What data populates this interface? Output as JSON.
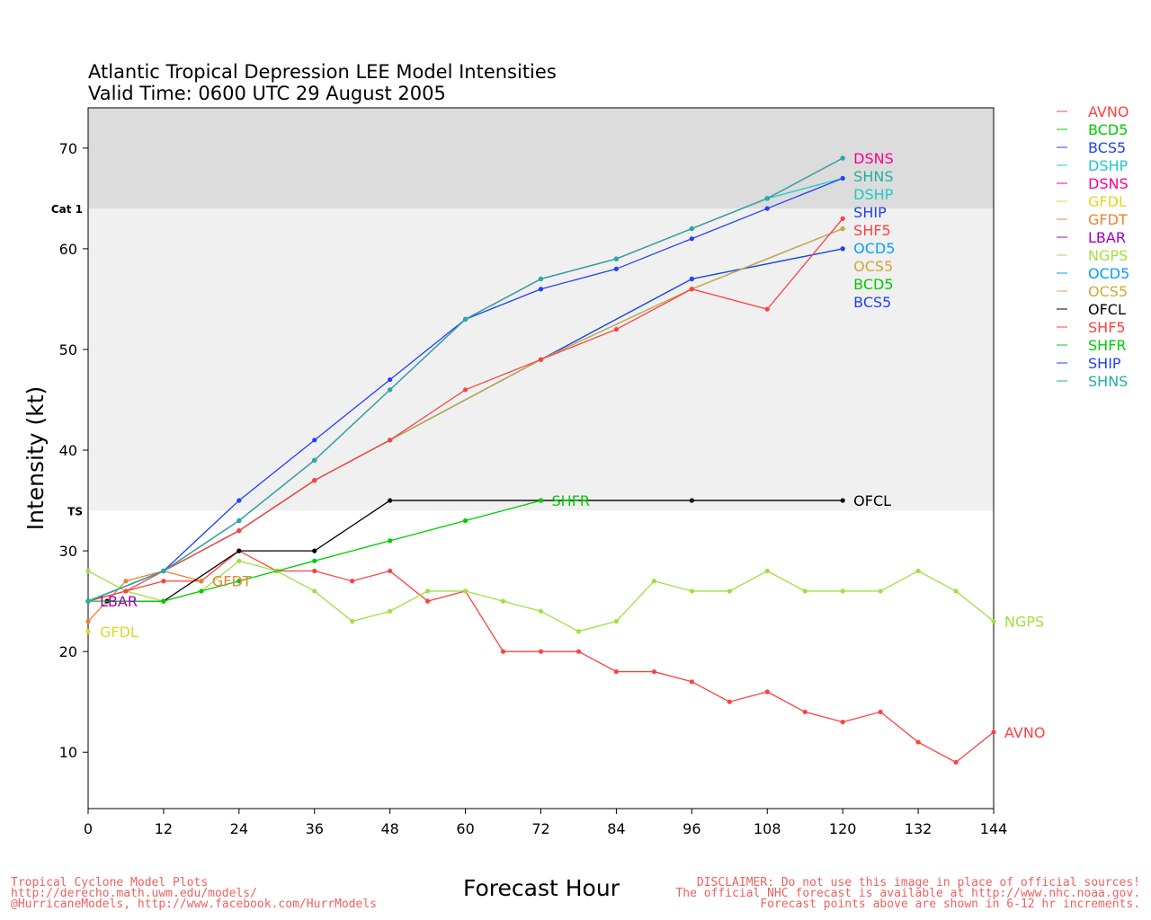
{
  "chart_data": {
    "type": "line",
    "title": "Atlantic Tropical Depression LEE Model Intensities",
    "subtitle": "Valid Time: 0600 UTC 29 August 2005",
    "xlabel": "Forecast Hour",
    "ylabel": "Intensity (kt)",
    "xlim": [
      0,
      144
    ],
    "ylim": [
      4.4,
      74
    ],
    "xticks": [
      0,
      12,
      24,
      36,
      48,
      60,
      72,
      84,
      96,
      108,
      120,
      132,
      144
    ],
    "yticks": [
      10,
      20,
      30,
      40,
      50,
      60,
      70
    ],
    "bands": [
      {
        "label": "TS",
        "from": 34,
        "to": 64,
        "color": "#f0f0f0"
      },
      {
        "label": "Cat 1",
        "from": 64,
        "to": 74,
        "color": "#dcdcdc"
      }
    ],
    "legend_position": "right",
    "series": [
      {
        "name": "AVNO",
        "color": "#ff4040",
        "points": [
          [
            0,
            25
          ],
          [
            6,
            26
          ],
          [
            12,
            27
          ],
          [
            18,
            27
          ],
          [
            24,
            30
          ],
          [
            30,
            28
          ],
          [
            36,
            28
          ],
          [
            42,
            27
          ],
          [
            48,
            28
          ],
          [
            54,
            25
          ],
          [
            60,
            26
          ],
          [
            66,
            20
          ],
          [
            72,
            20
          ],
          [
            78,
            20
          ],
          [
            84,
            18
          ],
          [
            90,
            18
          ],
          [
            96,
            17
          ],
          [
            102,
            15
          ],
          [
            108,
            16
          ],
          [
            114,
            14
          ],
          [
            120,
            13
          ],
          [
            126,
            14
          ],
          [
            132,
            11
          ],
          [
            138,
            9
          ],
          [
            144,
            12
          ]
        ]
      },
      {
        "name": "BCD5",
        "color": "#00cc00",
        "points": [
          [
            0,
            25
          ],
          [
            12,
            28
          ],
          [
            24,
            32
          ],
          [
            36,
            37
          ],
          [
            48,
            41
          ],
          [
            72,
            49
          ],
          [
            96,
            57
          ],
          [
            120,
            60
          ]
        ]
      },
      {
        "name": "BCS5",
        "color": "#2040ff",
        "points": [
          [
            0,
            25
          ],
          [
            12,
            28
          ],
          [
            24,
            32
          ],
          [
            36,
            37
          ],
          [
            48,
            41
          ],
          [
            72,
            49
          ],
          [
            96,
            57
          ],
          [
            120,
            60
          ]
        ]
      },
      {
        "name": "DSHP",
        "color": "#20c8c8",
        "points": [
          [
            0,
            25
          ],
          [
            12,
            28
          ],
          [
            24,
            33
          ],
          [
            36,
            39
          ],
          [
            48,
            46
          ],
          [
            60,
            53
          ],
          [
            72,
            57
          ],
          [
            84,
            59
          ],
          [
            96,
            62
          ],
          [
            108,
            65
          ],
          [
            120,
            67
          ]
        ]
      },
      {
        "name": "DSNS",
        "color": "#ff0090",
        "points": [
          [
            0,
            25
          ],
          [
            12,
            28
          ],
          [
            24,
            33
          ],
          [
            36,
            39
          ],
          [
            48,
            46
          ],
          [
            60,
            53
          ],
          [
            72,
            57
          ],
          [
            84,
            59
          ],
          [
            96,
            62
          ],
          [
            108,
            65
          ],
          [
            120,
            69
          ]
        ]
      },
      {
        "name": "GFDL",
        "color": "#e0d820",
        "points": [
          [
            0,
            22
          ]
        ]
      },
      {
        "name": "GFDT",
        "color": "#f08030",
        "points": [
          [
            0,
            23
          ],
          [
            6,
            27
          ],
          [
            12,
            28
          ],
          [
            18,
            27
          ]
        ]
      },
      {
        "name": "LBAR",
        "color": "#a000c0",
        "points": [
          [
            0,
            25
          ]
        ]
      },
      {
        "name": "NGPS",
        "color": "#a0e040",
        "points": [
          [
            0,
            28
          ],
          [
            6,
            26
          ],
          [
            12,
            25
          ],
          [
            18,
            26
          ],
          [
            24,
            29
          ],
          [
            30,
            28
          ],
          [
            36,
            26
          ],
          [
            42,
            23
          ],
          [
            48,
            24
          ],
          [
            54,
            26
          ],
          [
            60,
            26
          ],
          [
            66,
            25
          ],
          [
            72,
            24
          ],
          [
            78,
            22
          ],
          [
            84,
            23
          ],
          [
            90,
            27
          ],
          [
            96,
            26
          ],
          [
            102,
            26
          ],
          [
            108,
            28
          ],
          [
            114,
            26
          ],
          [
            120,
            26
          ],
          [
            126,
            26
          ],
          [
            132,
            28
          ],
          [
            138,
            26
          ],
          [
            144,
            23
          ]
        ]
      },
      {
        "name": "OCD5",
        "color": "#00a0ff",
        "points": [
          [
            0,
            25
          ],
          [
            12,
            28
          ],
          [
            24,
            32
          ],
          [
            36,
            37
          ],
          [
            48,
            41
          ],
          [
            72,
            49
          ],
          [
            96,
            56
          ],
          [
            120,
            62
          ]
        ]
      },
      {
        "name": "OCS5",
        "color": "#d0a838",
        "points": [
          [
            0,
            25
          ],
          [
            12,
            28
          ],
          [
            24,
            32
          ],
          [
            36,
            37
          ],
          [
            48,
            41
          ],
          [
            72,
            49
          ],
          [
            96,
            56
          ],
          [
            120,
            62
          ]
        ]
      },
      {
        "name": "OFCL",
        "color": "#000000",
        "points": [
          [
            3,
            25
          ],
          [
            12,
            25
          ],
          [
            24,
            30
          ],
          [
            36,
            30
          ],
          [
            48,
            35
          ],
          [
            72,
            35
          ],
          [
            96,
            35
          ],
          [
            120,
            35
          ]
        ]
      },
      {
        "name": "SHF5",
        "color": "#ff4040",
        "points": [
          [
            0,
            25
          ],
          [
            6,
            26
          ],
          [
            12,
            28
          ],
          [
            24,
            32
          ],
          [
            36,
            37
          ],
          [
            48,
            41
          ],
          [
            60,
            46
          ],
          [
            72,
            49
          ],
          [
            84,
            52
          ],
          [
            96,
            56
          ],
          [
            108,
            54
          ],
          [
            120,
            63
          ]
        ]
      },
      {
        "name": "SHFR",
        "color": "#00cc00",
        "points": [
          [
            0,
            25
          ],
          [
            12,
            25
          ],
          [
            18,
            26
          ],
          [
            24,
            27
          ],
          [
            36,
            29
          ],
          [
            48,
            31
          ],
          [
            60,
            33
          ],
          [
            72,
            35
          ]
        ]
      },
      {
        "name": "SHIP",
        "color": "#2040ff",
        "points": [
          [
            0,
            25
          ],
          [
            12,
            28
          ],
          [
            24,
            35
          ],
          [
            36,
            41
          ],
          [
            48,
            47
          ],
          [
            60,
            53
          ],
          [
            72,
            56
          ],
          [
            84,
            58
          ],
          [
            96,
            61
          ],
          [
            108,
            64
          ],
          [
            120,
            67
          ]
        ]
      },
      {
        "name": "SHNS",
        "color": "#20b0a0",
        "points": [
          [
            0,
            25
          ],
          [
            12,
            28
          ],
          [
            24,
            33
          ],
          [
            36,
            39
          ],
          [
            48,
            46
          ],
          [
            60,
            53
          ],
          [
            72,
            57
          ],
          [
            84,
            59
          ],
          [
            96,
            62
          ],
          [
            108,
            65
          ],
          [
            120,
            69
          ]
        ]
      }
    ]
  },
  "footer": {
    "left": [
      "Tropical Cyclone Model Plots",
      "http://derecho.math.uwm.edu/models/",
      "@HurricaneModels, http://www.facebook.com/HurrModels"
    ],
    "right": [
      "DISCLAIMER: Do not use this image in place of official sources!",
      "The official NHC forecast is available at http://www.nhc.noaa.gov.",
      "Forecast points above are shown in 6-12 hr increments."
    ]
  }
}
